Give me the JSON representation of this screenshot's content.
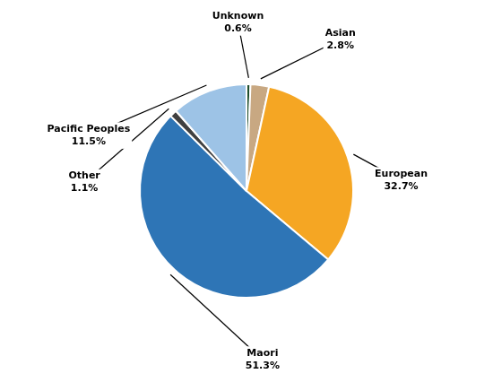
{
  "chart_data": {
    "type": "pie",
    "categories": [
      "Unknown",
      "Asian",
      "European",
      "Maori",
      "Other",
      "Pacific Peoples"
    ],
    "values": [
      0.6,
      2.8,
      32.7,
      51.3,
      1.1,
      11.5
    ],
    "value_labels": [
      "0.6%",
      "2.8%",
      "32.7%",
      "51.3%",
      "1.1%",
      "11.5%"
    ],
    "colors": [
      "#1F4E2C",
      "#C8A882",
      "#F5A623",
      "#2E75B6",
      "#404040",
      "#9DC3E6"
    ],
    "data_labels": true
  }
}
